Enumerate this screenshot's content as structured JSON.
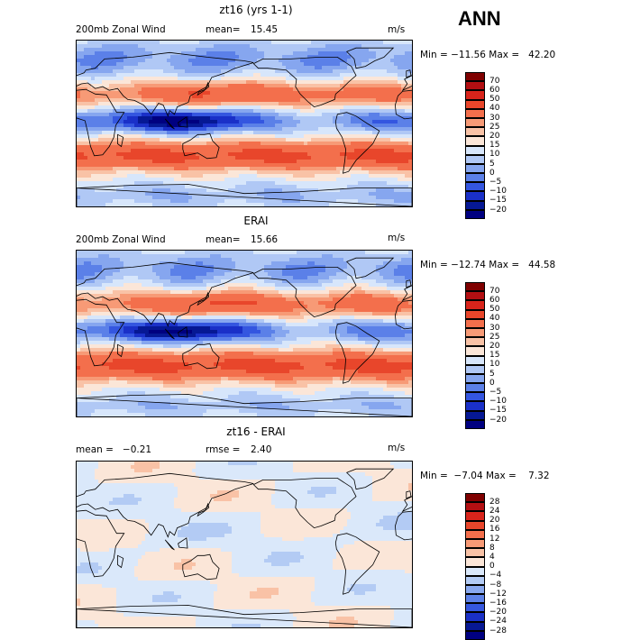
{
  "season": "ANN",
  "panels": [
    {
      "title": "zt16 (yrs 1-1)",
      "left_label": "200mb Zonal Wind",
      "stat_label": "mean=",
      "stat_value": "15.45",
      "units": "m/s",
      "minmax": "Min = −11.56 Max =   42.20",
      "colorbar_labels": [
        "70",
        "60",
        "50",
        "40",
        "30",
        "25",
        "20",
        "15",
        "10",
        "5",
        "0",
        "−5",
        "−10",
        "−15",
        "−20"
      ]
    },
    {
      "title": "ERAI",
      "left_label": "200mb Zonal Wind",
      "stat_label": "mean=",
      "stat_value": "15.66",
      "units": "m/s",
      "minmax": "Min = −12.74 Max =   44.58",
      "colorbar_labels": [
        "70",
        "60",
        "50",
        "40",
        "30",
        "25",
        "20",
        "15",
        "10",
        "5",
        "0",
        "−5",
        "−10",
        "−15",
        "−20"
      ]
    },
    {
      "title": "zt16 - ERAI",
      "left_label": "mean =   −0.21",
      "stat_label": "rmse =",
      "stat_value": "2.40",
      "units": "m/s",
      "minmax": "Min =  −7.04 Max =    7.32",
      "colorbar_labels": [
        "28",
        "24",
        "20",
        "16",
        "12",
        "8",
        "4",
        "0",
        "−4",
        "−8",
        "−12",
        "−16",
        "−20",
        "−24",
        "−28"
      ]
    }
  ],
  "colors": {
    "full": [
      "#7f0000",
      "#b20f12",
      "#d8241b",
      "#e8462b",
      "#f36f4c",
      "#f79a76",
      "#f9c2a6",
      "#fbe6d8",
      "#d7e6fb",
      "#b0c8f5",
      "#86a6ef",
      "#5b80e8",
      "#3456e0",
      "#1a30c8",
      "#061894",
      "#000080"
    ],
    "diff": [
      "#7f0000",
      "#b20f12",
      "#d8241b",
      "#e8462b",
      "#f36f4c",
      "#f79a76",
      "#f9c2a6",
      "#fbe6d8",
      "#dae8fa",
      "#b3cbf4",
      "#89a8ee",
      "#5e82e7",
      "#3557de",
      "#1a30c6",
      "#071893",
      "#000080"
    ]
  },
  "chart_data": [
    {
      "type": "heatmap",
      "title": "zt16 (yrs 1-1)",
      "variable": "200mb Zonal Wind",
      "units": "m/s",
      "mean": 15.45,
      "min": -11.56,
      "max": 42.2,
      "contour_levels": [
        -20,
        -15,
        -10,
        -5,
        0,
        5,
        10,
        15,
        20,
        25,
        30,
        40,
        50,
        60,
        70
      ]
    },
    {
      "type": "heatmap",
      "title": "ERAI",
      "variable": "200mb Zonal Wind",
      "units": "m/s",
      "mean": 15.66,
      "min": -12.74,
      "max": 44.58,
      "contour_levels": [
        -20,
        -15,
        -10,
        -5,
        0,
        5,
        10,
        15,
        20,
        25,
        30,
        40,
        50,
        60,
        70
      ]
    },
    {
      "type": "heatmap",
      "title": "zt16 - ERAI",
      "units": "m/s",
      "mean": -0.21,
      "rmse": 2.4,
      "min": -7.04,
      "max": 7.32,
      "contour_levels": [
        -28,
        -24,
        -20,
        -16,
        -12,
        -8,
        -4,
        0,
        4,
        8,
        12,
        16,
        20,
        24,
        28
      ]
    }
  ]
}
